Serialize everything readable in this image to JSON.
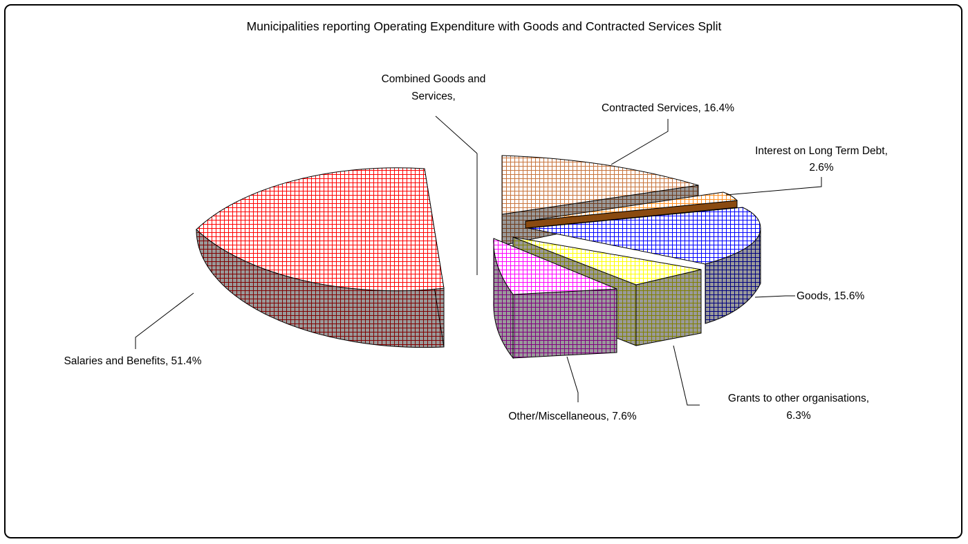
{
  "chart_data": {
    "type": "pie",
    "style": "3d-exploded",
    "title": "Municipalities reporting Operating Expenditure with Goods and Contracted Services Split",
    "pattern": "grid-hatch",
    "slices": [
      {
        "label": "Salaries and Benefits",
        "value": 51.4,
        "label_text": "Salaries and Benefits, 51.4%",
        "color": "#ff0000",
        "side_color": "#800000"
      },
      {
        "label": "Combined Goods and Services",
        "value": 0,
        "label_lines": [
          "Combined Goods and",
          "Services,"
        ],
        "color": "#999999",
        "side_color": "#555555"
      },
      {
        "label": "Contracted Services",
        "value": 16.4,
        "label_text": "Contracted Services, 16.4%",
        "color": "#c8743c",
        "side_color": "#6e3c1e"
      },
      {
        "label": "Interest on Long Term Debt",
        "value": 2.6,
        "label_lines": [
          "Interest on Long Term Debt,",
          "2.6%"
        ],
        "color": "#ff8c1a",
        "side_color": "#8a4a10"
      },
      {
        "label": "Goods",
        "value": 15.6,
        "label_text": "Goods, 15.6%",
        "color": "#0000ff",
        "side_color": "#000080"
      },
      {
        "label": "Grants to other organisations",
        "value": 6.3,
        "label_lines": [
          "Grants to other organisations,",
          "6.3%"
        ],
        "color": "#ffff00",
        "side_color": "#808000"
      },
      {
        "label": "Other/Miscellaneous",
        "value": 7.6,
        "label_text": "Other/Miscellaneous, 7.6%",
        "color": "#ff00ff",
        "side_color": "#800080"
      }
    ]
  }
}
